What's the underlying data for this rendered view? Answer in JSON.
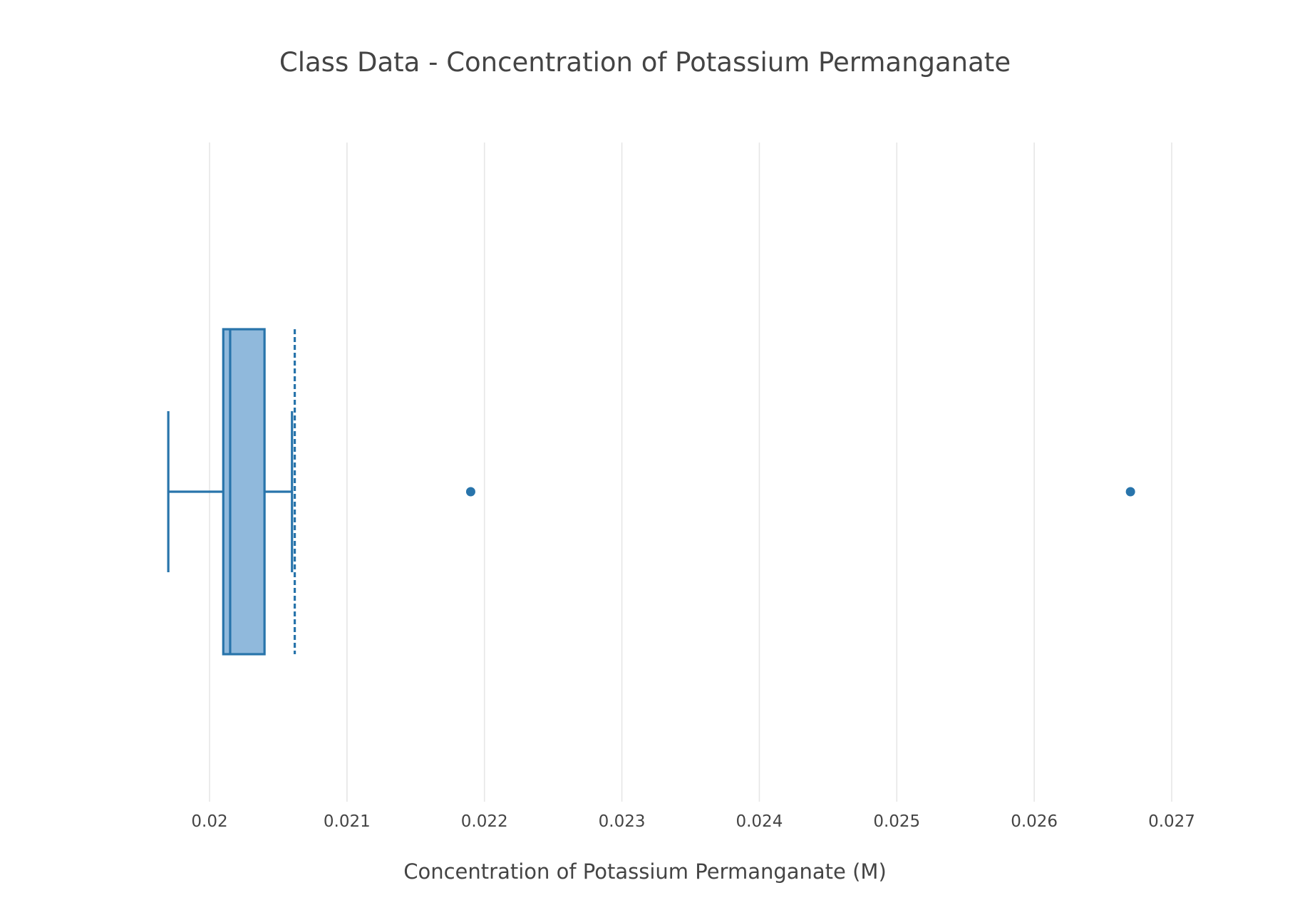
{
  "chart_data": {
    "type": "box",
    "orientation": "horizontal",
    "title": "Class Data - Concentration of Potassium Permanganate",
    "xlabel": "Concentration of Potassium Permanganate (M)",
    "ylabel": "",
    "xlim": [
      0.01966,
      0.02746
    ],
    "xticks": [
      0.02,
      0.021,
      0.022,
      0.023,
      0.024,
      0.025,
      0.026,
      0.027
    ],
    "xtick_labels": [
      "0.02",
      "0.021",
      "0.022",
      "0.023",
      "0.024",
      "0.025",
      "0.026",
      "0.027"
    ],
    "grid": true,
    "legend": "none",
    "box": {
      "lower_fence": 0.0197,
      "q1": 0.0201,
      "median": 0.02015,
      "q3": 0.0204,
      "upper_fence": 0.0206,
      "mean": 0.02062,
      "outliers": [
        0.0219,
        0.0267
      ]
    },
    "colors": {
      "line": "#2874ab",
      "fill": "#90b9dc",
      "grid": "#e6e6e6",
      "text": "#444444"
    }
  }
}
